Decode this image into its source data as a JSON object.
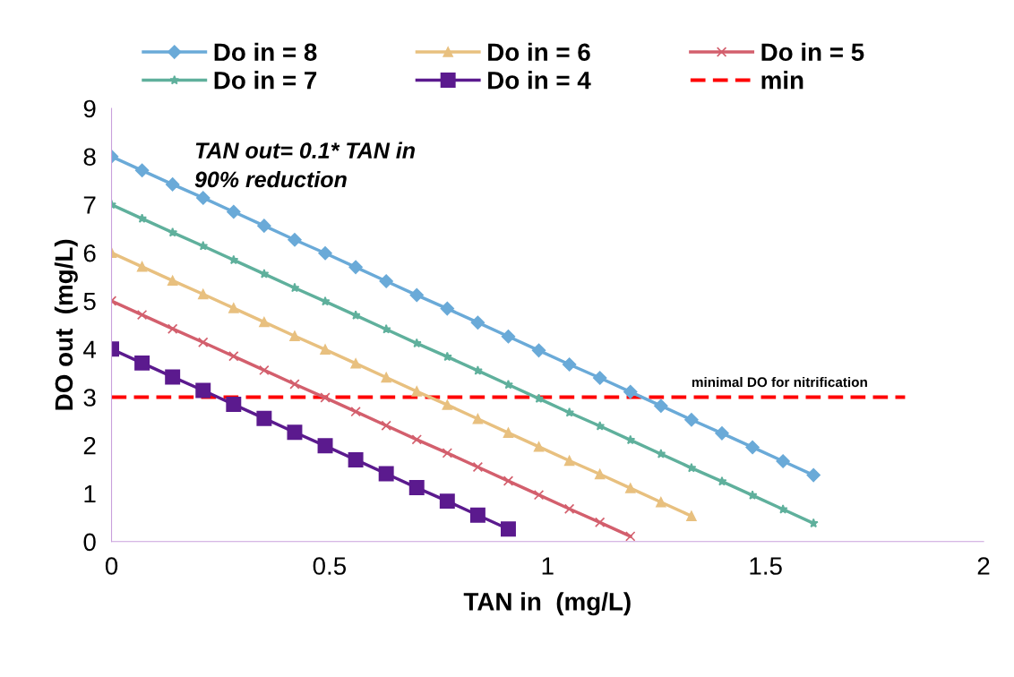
{
  "chart_data": {
    "type": "line",
    "xlabel": "TAN in  (mg/L)",
    "ylabel": "DO out  (mg/L)",
    "xlim": [
      0,
      2
    ],
    "xticks": [
      0,
      0.5,
      1,
      1.5,
      2
    ],
    "ylim": [
      0,
      9
    ],
    "yticks": [
      0,
      1,
      2,
      3,
      4,
      5,
      6,
      7,
      8,
      9
    ],
    "grid": false,
    "legend": "top",
    "annotations": [
      "TAN out= 0.1* TAN in\n90% reduction",
      {
        "text": "minimal DO for nitrification",
        "x": 1.33,
        "y": 3
      }
    ],
    "series": [
      {
        "name": "Do in = 8",
        "color": "#6aaad8",
        "marker": "diamond",
        "x": [
          0,
          0.07,
          0.14,
          0.21,
          0.28,
          0.35,
          0.42,
          0.49,
          0.56,
          0.63,
          0.7,
          0.77,
          0.84,
          0.91,
          0.98,
          1.05,
          1.12,
          1.19,
          1.26,
          1.33,
          1.4,
          1.47,
          1.54,
          1.61
        ],
        "values": [
          8,
          7.71,
          7.42,
          7.14,
          6.85,
          6.56,
          6.27,
          5.99,
          5.7,
          5.41,
          5.12,
          4.84,
          4.55,
          4.26,
          3.97,
          3.68,
          3.4,
          3.11,
          2.82,
          2.53,
          2.25,
          1.96,
          1.67,
          1.38
        ]
      },
      {
        "name": "Do in = 7",
        "color": "#5fb09c",
        "marker": "star",
        "x": [
          0,
          0.07,
          0.14,
          0.21,
          0.28,
          0.35,
          0.42,
          0.49,
          0.56,
          0.63,
          0.7,
          0.77,
          0.84,
          0.91,
          0.98,
          1.05,
          1.12,
          1.19,
          1.26,
          1.33,
          1.4,
          1.47,
          1.54,
          1.61
        ],
        "values": [
          7,
          6.71,
          6.42,
          6.14,
          5.85,
          5.56,
          5.27,
          4.99,
          4.7,
          4.41,
          4.12,
          3.84,
          3.55,
          3.26,
          2.97,
          2.68,
          2.4,
          2.11,
          1.82,
          1.53,
          1.25,
          0.96,
          0.67,
          0.38
        ]
      },
      {
        "name": "Do in = 6",
        "color": "#e8c07f",
        "marker": "triangle",
        "x": [
          0,
          0.07,
          0.14,
          0.21,
          0.28,
          0.35,
          0.42,
          0.49,
          0.56,
          0.63,
          0.7,
          0.77,
          0.84,
          0.91,
          0.98,
          1.05,
          1.12,
          1.19,
          1.26,
          1.33
        ],
        "values": [
          6,
          5.71,
          5.42,
          5.14,
          4.85,
          4.56,
          4.27,
          3.99,
          3.7,
          3.41,
          3.12,
          2.84,
          2.55,
          2.26,
          1.97,
          1.68,
          1.4,
          1.11,
          0.82,
          0.53
        ]
      },
      {
        "name": "Do in = 4",
        "color": "#5b1a8e",
        "marker": "square",
        "x": [
          0,
          0.07,
          0.14,
          0.21,
          0.28,
          0.35,
          0.42,
          0.49,
          0.56,
          0.63,
          0.7,
          0.77,
          0.84,
          0.91
        ],
        "values": [
          4,
          3.71,
          3.42,
          3.14,
          2.85,
          2.56,
          2.27,
          1.99,
          1.7,
          1.41,
          1.12,
          0.84,
          0.55,
          0.26
        ]
      },
      {
        "name": "Do in = 5",
        "color": "#d35f6d",
        "marker": "cross",
        "x": [
          0,
          0.07,
          0.14,
          0.21,
          0.28,
          0.35,
          0.42,
          0.49,
          0.56,
          0.63,
          0.7,
          0.77,
          0.84,
          0.91,
          0.98,
          1.05,
          1.12,
          1.19
        ],
        "values": [
          5,
          4.71,
          4.42,
          4.14,
          3.85,
          3.56,
          3.27,
          2.99,
          2.7,
          2.41,
          2.12,
          1.84,
          1.55,
          1.26,
          0.97,
          0.68,
          0.4,
          0.11
        ]
      },
      {
        "name": "min",
        "color": "#ff0000",
        "marker": "none",
        "line_style": "dashed",
        "x": [
          0,
          1.82
        ],
        "values": [
          3,
          3
        ]
      }
    ]
  }
}
